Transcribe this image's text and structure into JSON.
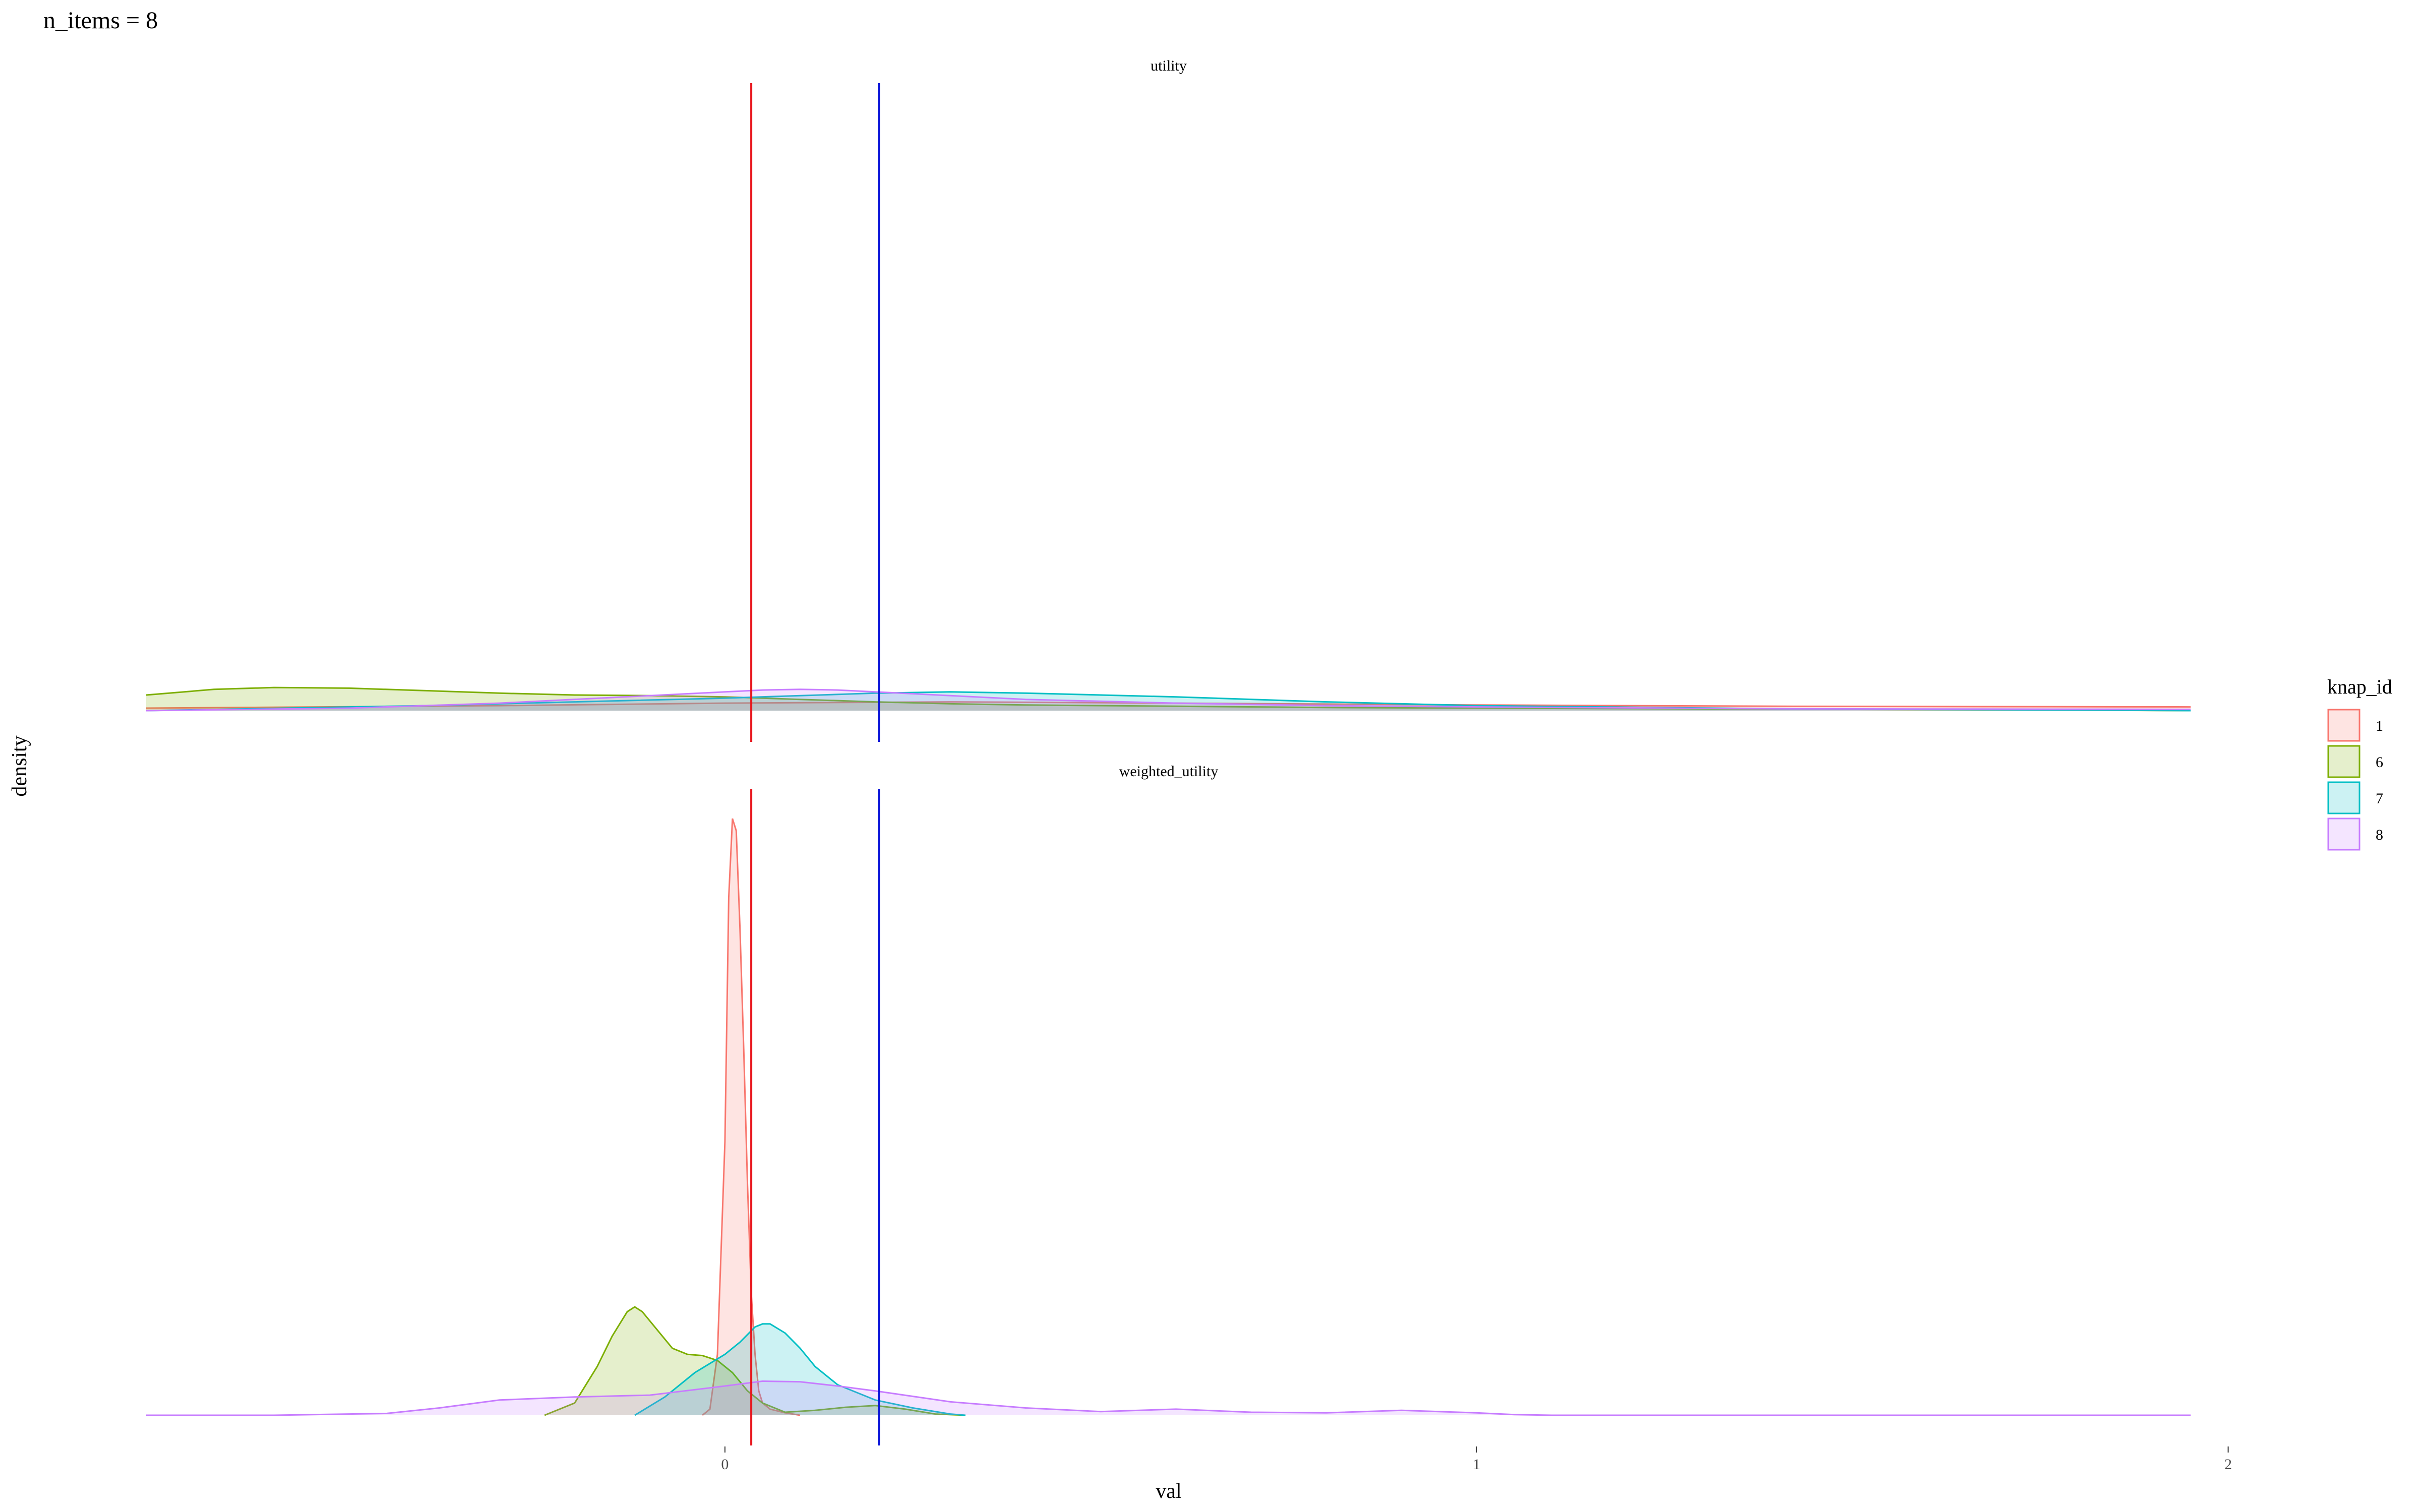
{
  "plot_title": "n_items = 8",
  "chart_data": {
    "type": "area",
    "subtype": "density",
    "xlabel": "val",
    "ylabel": "density",
    "xlim": [
      -0.77,
      1.95
    ],
    "x_ticks": [
      0,
      1,
      2
    ],
    "x_tick_labels": [
      "0",
      "1",
      "2"
    ],
    "grid": false,
    "legend": {
      "title": "knap_id",
      "placement": "right",
      "entries": [
        {
          "label": "1",
          "color": "#F8766D"
        },
        {
          "label": "6",
          "color": "#7CAE00"
        },
        {
          "label": "7",
          "color": "#00BFC4"
        },
        {
          "label": "8",
          "color": "#C77CFF"
        }
      ]
    },
    "reference_lines": [
      {
        "x": 0.035,
        "color": "#E8141B"
      },
      {
        "x": 0.205,
        "color": "#0A14D8"
      }
    ],
    "panels": [
      {
        "strip": "utility",
        "ylim": [
          0,
          1.0
        ],
        "series": [
          {
            "id": "1",
            "color": "#F8766D",
            "x": [
              -0.77,
              -0.3,
              0.0,
              0.3,
              0.6,
              1.0,
              1.4,
              1.95
            ],
            "y": [
              0.004,
              0.008,
              0.012,
              0.014,
              0.012,
              0.009,
              0.007,
              0.006
            ]
          },
          {
            "id": "6",
            "color": "#7CAE00",
            "x": [
              -0.77,
              -0.68,
              -0.6,
              -0.5,
              -0.4,
              -0.3,
              -0.2,
              -0.1,
              0.0,
              0.1,
              0.2,
              0.3,
              0.4,
              0.6,
              0.8,
              1.0,
              1.5,
              1.95
            ],
            "y": [
              0.025,
              0.034,
              0.037,
              0.036,
              0.032,
              0.028,
              0.025,
              0.024,
              0.022,
              0.018,
              0.014,
              0.011,
              0.009,
              0.007,
              0.005,
              0.004,
              0.002,
              0.0
            ]
          },
          {
            "id": "7",
            "color": "#00BFC4",
            "x": [
              -0.77,
              -0.4,
              -0.2,
              0.0,
              0.1,
              0.2,
              0.3,
              0.4,
              0.6,
              0.8,
              1.0,
              1.4,
              1.95
            ],
            "y": [
              0.0,
              0.008,
              0.014,
              0.02,
              0.024,
              0.028,
              0.03,
              0.028,
              0.022,
              0.014,
              0.008,
              0.003,
              0.0
            ]
          },
          {
            "id": "8",
            "color": "#C77CFF",
            "x": [
              -0.77,
              -0.5,
              -0.3,
              -0.1,
              0.0,
              0.05,
              0.1,
              0.15,
              0.2,
              0.3,
              0.4,
              0.6,
              0.8,
              1.0,
              1.4,
              1.95
            ],
            "y": [
              0.0,
              0.004,
              0.012,
              0.024,
              0.03,
              0.033,
              0.034,
              0.033,
              0.03,
              0.024,
              0.018,
              0.012,
              0.008,
              0.006,
              0.003,
              0.002
            ]
          }
        ]
      },
      {
        "strip": "weighted_utility",
        "ylim": [
          0,
          1.0
        ],
        "series": [
          {
            "id": "1",
            "color": "#F8766D",
            "x": [
              -0.03,
              -0.02,
              -0.01,
              0.0,
              0.005,
              0.01,
              0.015,
              0.02,
              0.025,
              0.03,
              0.035,
              0.04,
              0.045,
              0.05,
              0.06,
              0.08,
              0.1
            ],
            "y": [
              0.0,
              0.01,
              0.1,
              0.45,
              0.85,
              0.98,
              0.96,
              0.8,
              0.6,
              0.38,
              0.2,
              0.1,
              0.04,
              0.02,
              0.01,
              0.004,
              0.0
            ]
          },
          {
            "id": "6",
            "color": "#7CAE00",
            "x": [
              -0.24,
              -0.2,
              -0.17,
              -0.15,
              -0.13,
              -0.12,
              -0.11,
              -0.09,
              -0.07,
              -0.05,
              -0.03,
              -0.01,
              0.01,
              0.03,
              0.05,
              0.08,
              0.12,
              0.16,
              0.2,
              0.24,
              0.28,
              0.32
            ],
            "y": [
              0.0,
              0.02,
              0.08,
              0.13,
              0.17,
              0.178,
              0.17,
              0.14,
              0.11,
              0.1,
              0.098,
              0.09,
              0.07,
              0.04,
              0.02,
              0.005,
              0.008,
              0.013,
              0.016,
              0.01,
              0.002,
              0.0
            ]
          },
          {
            "id": "7",
            "color": "#00BFC4",
            "x": [
              -0.12,
              -0.08,
              -0.04,
              -0.02,
              0.0,
              0.02,
              0.04,
              0.05,
              0.06,
              0.08,
              0.1,
              0.12,
              0.15,
              0.2,
              0.25,
              0.3,
              0.32
            ],
            "y": [
              0.0,
              0.03,
              0.07,
              0.085,
              0.1,
              0.12,
              0.145,
              0.15,
              0.15,
              0.135,
              0.11,
              0.08,
              0.05,
              0.025,
              0.012,
              0.002,
              0.0
            ]
          },
          {
            "id": "8",
            "color": "#C77CFF",
            "x": [
              -0.77,
              -0.6,
              -0.45,
              -0.38,
              -0.3,
              -0.2,
              -0.1,
              0.0,
              0.05,
              0.1,
              0.15,
              0.2,
              0.3,
              0.4,
              0.5,
              0.6,
              0.7,
              0.8,
              0.9,
              1.0,
              1.05,
              1.1,
              1.95
            ],
            "y": [
              0.0,
              0.0,
              0.003,
              0.012,
              0.025,
              0.03,
              0.033,
              0.048,
              0.056,
              0.055,
              0.048,
              0.04,
              0.022,
              0.012,
              0.006,
              0.01,
              0.005,
              0.004,
              0.008,
              0.004,
              0.001,
              0.0,
              0.0
            ]
          }
        ]
      }
    ]
  }
}
